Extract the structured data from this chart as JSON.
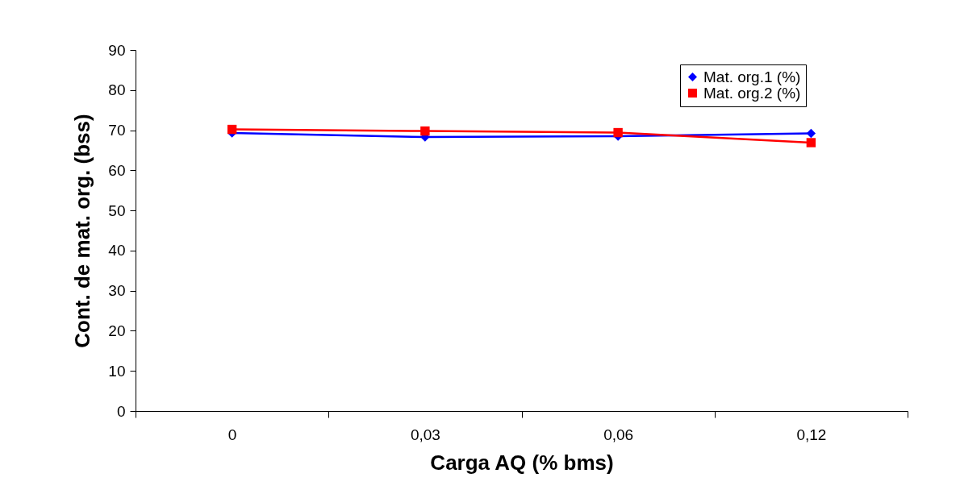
{
  "chart_data": {
    "type": "line",
    "xlabel": "Carga AQ (% bms)",
    "ylabel": "Cont. de mat. org. (bss)",
    "categories": [
      "0",
      "0,03",
      "0,06",
      "0,12"
    ],
    "series": [
      {
        "name": "Mat. org.1 (%)",
        "color": "#0000ff",
        "marker": "diamond",
        "values": [
          69.3,
          68.3,
          68.5,
          69.2
        ]
      },
      {
        "name": "Mat. org.2 (%)",
        "color": "#ff0000",
        "marker": "square",
        "values": [
          70.2,
          69.8,
          69.4,
          66.9
        ]
      }
    ],
    "ylim": [
      0,
      90
    ],
    "yticks": [
      0,
      10,
      20,
      30,
      40,
      50,
      60,
      70,
      80,
      90
    ],
    "grid": false,
    "legend": "top right"
  }
}
